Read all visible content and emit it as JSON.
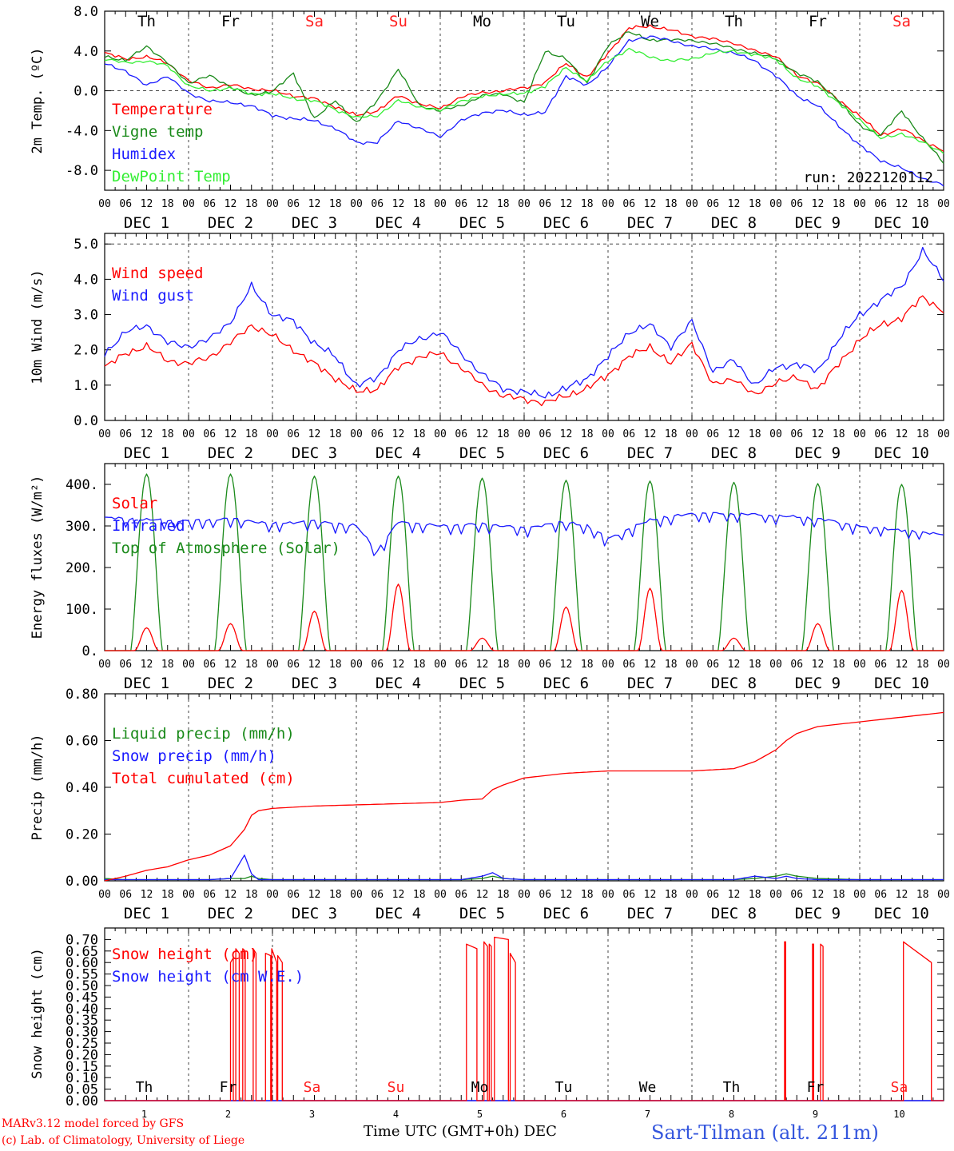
{
  "run_label": "run: 2022120112",
  "colors": {
    "red": "#ff0000",
    "green": "#1a8a1a",
    "blue": "#1a1aff",
    "lightgreen": "#33ee33",
    "weekend": "#ff2020"
  },
  "days": {
    "names": [
      "Th",
      "Fr",
      "Sa",
      "Su",
      "Mo",
      "Tu",
      "We",
      "Th",
      "Fr",
      "Sa"
    ],
    "weekend": [
      false,
      false,
      true,
      true,
      false,
      false,
      false,
      false,
      false,
      true
    ],
    "date_labels": [
      "DEC  1",
      "DEC  2",
      "DEC  3",
      "DEC  4",
      "DEC  5",
      "DEC  6",
      "DEC  7",
      "DEC  8",
      "DEC  9",
      "DEC 10"
    ],
    "numbers": [
      "1",
      "2",
      "3",
      "4",
      "5",
      "6",
      "7",
      "8",
      "9",
      "10"
    ],
    "hour_ticks": [
      "00",
      "06",
      "12",
      "18"
    ],
    "final_tick": "00"
  },
  "footer": {
    "model": "MARv3.12 model forced by GFS",
    "copyright": "(c) Lab. of Climatology, University of Liege",
    "xlabel": "Time UTC (GMT+0h) DEC",
    "station": "Sart-Tilman (alt. 211m)"
  },
  "chart_data": [
    {
      "type": "line",
      "ylabel": "2m Temp. (ºC)",
      "ylim": [
        -10,
        8
      ],
      "yticks": [
        8,
        4,
        0,
        -4,
        -8
      ],
      "ytick_labels": [
        "8.0",
        "4.0",
        "0.0",
        "-4.0",
        "-8.0"
      ],
      "dashed_levels": [
        0
      ],
      "x_unit": "hours since DEC 1 00 UTC",
      "x": [
        0,
        6,
        12,
        18,
        24,
        30,
        36,
        42,
        48,
        54,
        60,
        66,
        72,
        78,
        84,
        90,
        96,
        102,
        108,
        114,
        120,
        126,
        132,
        138,
        144,
        150,
        156,
        162,
        168,
        174,
        180,
        186,
        192,
        198,
        204,
        210,
        216,
        222,
        228,
        234,
        240
      ],
      "series": [
        {
          "name": "Temperature",
          "color": "red",
          "values": [
            3.8,
            3.2,
            3.4,
            2.8,
            1.0,
            0.3,
            0.6,
            0.2,
            0.0,
            -0.5,
            -0.8,
            -1.6,
            -2.5,
            -2.0,
            -0.5,
            -1.3,
            -1.8,
            -0.6,
            -0.2,
            0.0,
            0.3,
            0.8,
            2.8,
            1.3,
            3.8,
            6.3,
            6.5,
            6.1,
            5.5,
            5.2,
            4.8,
            4.0,
            3.5,
            1.5,
            0.8,
            -1.0,
            -2.5,
            -4.5,
            -3.8,
            -5.0,
            -6.0
          ]
        },
        {
          "name": "Vigne temp",
          "color": "green",
          "values": [
            3.5,
            3.0,
            4.5,
            2.8,
            0.8,
            1.5,
            0.4,
            -0.5,
            0.0,
            1.7,
            -2.8,
            -1.0,
            -3.2,
            -1.0,
            2.2,
            -1.5,
            -2.0,
            -1.5,
            -0.5,
            -0.3,
            -1.2,
            4.0,
            3.2,
            0.8,
            4.5,
            6.0,
            5.0,
            5.2,
            5.0,
            4.8,
            4.2,
            3.8,
            3.2,
            1.8,
            0.9,
            -1.0,
            -3.5,
            -4.5,
            -2.0,
            -4.8,
            -7.2
          ]
        },
        {
          "name": "Humidex",
          "color": "blue",
          "values": [
            2.7,
            2.0,
            0.5,
            1.5,
            -0.3,
            -1.0,
            -1.2,
            -1.5,
            -2.5,
            -2.8,
            -3.0,
            -3.8,
            -5.2,
            -5.2,
            -3.0,
            -3.8,
            -4.6,
            -3.0,
            -2.2,
            -2.0,
            -2.4,
            -2.2,
            1.5,
            0.5,
            2.5,
            5.0,
            5.5,
            5.0,
            4.5,
            4.2,
            3.8,
            3.0,
            1.5,
            -0.5,
            -1.5,
            -3.5,
            -5.5,
            -7.0,
            -7.8,
            -8.8,
            -9.5
          ]
        },
        {
          "name": "DewPoint Temp",
          "color": "lightgreen",
          "values": [
            3.2,
            2.8,
            3.0,
            2.5,
            0.5,
            0.0,
            0.3,
            -0.3,
            -0.3,
            -0.8,
            -1.0,
            -1.9,
            -2.7,
            -2.5,
            -1.0,
            -1.6,
            -2.0,
            -1.0,
            -0.6,
            -0.3,
            -0.3,
            0.5,
            2.3,
            1.0,
            3.0,
            4.2,
            3.4,
            3.0,
            3.2,
            3.8,
            4.0,
            3.6,
            3.2,
            1.2,
            0.5,
            -1.3,
            -2.9,
            -4.8,
            -4.3,
            -5.2,
            -6.2
          ]
        }
      ]
    },
    {
      "type": "line",
      "ylabel": "10m Wind (m/s)",
      "ylim": [
        0,
        5.3
      ],
      "yticks": [
        0,
        1,
        2,
        3,
        4,
        5
      ],
      "ytick_labels": [
        "0.0",
        "1.0",
        "2.0",
        "3.0",
        "4.0",
        "5.0"
      ],
      "dashed_levels": [
        5
      ],
      "x_unit": "hours since DEC 1 00 UTC",
      "x": [
        0,
        6,
        12,
        18,
        24,
        30,
        36,
        42,
        48,
        54,
        60,
        66,
        72,
        78,
        84,
        90,
        96,
        102,
        108,
        114,
        120,
        126,
        132,
        138,
        144,
        150,
        156,
        162,
        168,
        174,
        180,
        186,
        192,
        198,
        204,
        210,
        216,
        222,
        228,
        234,
        240
      ],
      "series": [
        {
          "name": "Wind speed",
          "color": "red",
          "values": [
            1.5,
            1.9,
            2.1,
            1.7,
            1.6,
            1.8,
            2.2,
            2.7,
            2.4,
            2.0,
            1.6,
            1.2,
            0.8,
            0.9,
            1.5,
            1.8,
            1.9,
            1.5,
            1.0,
            0.7,
            0.6,
            0.5,
            0.7,
            0.9,
            1.3,
            1.8,
            2.1,
            1.6,
            2.2,
            1.0,
            1.2,
            0.7,
            1.1,
            1.2,
            0.9,
            1.6,
            2.3,
            2.7,
            2.9,
            3.5,
            3.1
          ]
        },
        {
          "name": "Wind gust",
          "color": "blue",
          "values": [
            1.9,
            2.5,
            2.7,
            2.2,
            2.1,
            2.3,
            2.8,
            3.8,
            3.0,
            2.8,
            2.2,
            1.8,
            1.0,
            1.2,
            2.0,
            2.3,
            2.5,
            1.9,
            1.3,
            0.9,
            0.8,
            0.7,
            0.9,
            1.2,
            1.8,
            2.5,
            2.7,
            2.1,
            2.8,
            1.4,
            1.7,
            1.0,
            1.5,
            1.6,
            1.4,
            2.3,
            3.0,
            3.4,
            3.8,
            4.8,
            4.0
          ]
        }
      ]
    },
    {
      "type": "line",
      "ylabel": "Energy fluxes (W/m²)",
      "ylim": [
        0,
        450
      ],
      "yticks": [
        0,
        100,
        200,
        300,
        400
      ],
      "ytick_labels": [
        "0.",
        "100.",
        "200.",
        "300.",
        "400."
      ],
      "x_unit": "hours since DEC 1 00 UTC",
      "series": [
        {
          "name": "Solar",
          "color": "red",
          "daily_peaks": [
            55,
            65,
            95,
            160,
            30,
            105,
            150,
            30,
            65,
            145
          ]
        },
        {
          "name": "Infrared",
          "color": "blue",
          "x": [
            0,
            12,
            24,
            36,
            48,
            60,
            72,
            78,
            84,
            96,
            108,
            120,
            132,
            138,
            144,
            156,
            168,
            180,
            192,
            204,
            216,
            228,
            240
          ],
          "values": [
            320,
            315,
            312,
            318,
            305,
            312,
            300,
            240,
            310,
            300,
            305,
            295,
            310,
            300,
            270,
            315,
            330,
            330,
            325,
            318,
            300,
            290,
            280
          ]
        },
        {
          "name": "Top of Atmosphere (Solar)",
          "color": "green",
          "daily_peaks": [
            425,
            425,
            420,
            420,
            415,
            410,
            408,
            405,
            402,
            400
          ]
        }
      ]
    },
    {
      "type": "line",
      "ylabel": "Precip (mm/h)",
      "ylim": [
        0,
        0.8
      ],
      "yticks": [
        0,
        0.2,
        0.4,
        0.6,
        0.8
      ],
      "ytick_labels": [
        "0.00",
        "0.20",
        "0.40",
        "0.60",
        "0.80"
      ],
      "x_unit": "hours since DEC 1 00 UTC",
      "x": [
        0,
        6,
        12,
        18,
        24,
        30,
        36,
        40,
        42,
        44,
        48,
        60,
        72,
        84,
        96,
        102,
        108,
        111,
        114,
        120,
        132,
        144,
        156,
        168,
        180,
        186,
        192,
        195,
        198,
        204,
        216,
        228,
        240
      ],
      "series": [
        {
          "name": "Liquid precip (mm/h)",
          "color": "green",
          "values": [
            0.01,
            0.005,
            0.005,
            0.005,
            0.005,
            0.005,
            0.01,
            0.01,
            0.02,
            0.01,
            0.005,
            0.005,
            0.005,
            0.005,
            0.005,
            0.005,
            0.01,
            0.02,
            0.01,
            0.005,
            0.005,
            0.005,
            0.005,
            0.005,
            0.005,
            0.01,
            0.02,
            0.03,
            0.02,
            0.01,
            0.005,
            0.005,
            0.005
          ]
        },
        {
          "name": "Snow precip (mm/h)",
          "color": "blue",
          "values": [
            0.005,
            0.005,
            0.005,
            0.005,
            0.005,
            0.005,
            0.01,
            0.11,
            0.03,
            0.005,
            0.005,
            0.005,
            0.005,
            0.005,
            0.005,
            0.005,
            0.02,
            0.035,
            0.01,
            0.005,
            0.005,
            0.005,
            0.005,
            0.005,
            0.005,
            0.02,
            0.01,
            0.02,
            0.01,
            0.005,
            0.005,
            0.005,
            0.005
          ]
        },
        {
          "name": "Total cumulated (cm)",
          "color": "red",
          "values": [
            0.0,
            0.02,
            0.045,
            0.06,
            0.09,
            0.11,
            0.15,
            0.22,
            0.28,
            0.3,
            0.31,
            0.32,
            0.325,
            0.33,
            0.335,
            0.345,
            0.35,
            0.39,
            0.41,
            0.44,
            0.46,
            0.47,
            0.47,
            0.47,
            0.48,
            0.51,
            0.56,
            0.6,
            0.63,
            0.66,
            0.68,
            0.7,
            0.72
          ]
        }
      ]
    },
    {
      "type": "line",
      "ylabel": "Snow height (cm)",
      "ylim": [
        0,
        0.75
      ],
      "yticks": [
        0,
        0.05,
        0.1,
        0.15,
        0.2,
        0.25,
        0.3,
        0.35,
        0.4,
        0.45,
        0.5,
        0.55,
        0.6,
        0.65,
        0.7
      ],
      "ytick_labels": [
        "0.00",
        "0.05",
        "0.10",
        "0.15",
        "0.20",
        "0.25",
        "0.30",
        "0.35",
        "0.40",
        "0.45",
        "0.50",
        "0.55",
        "0.60",
        "0.65",
        "0.70"
      ],
      "x_unit": "hours since DEC 1 00 UTC",
      "series": [
        {
          "name": "Snow height (cm)",
          "color": "red",
          "spikes": [
            {
              "x0": 36,
              "x1": 36.8,
              "v0": 0.6,
              "v1": 0.62
            },
            {
              "x0": 37.5,
              "x1": 38.5,
              "v0": 0.66,
              "v1": 0.64
            },
            {
              "x0": 39.5,
              "x1": 40.2,
              "v0": 0.66,
              "v1": 0.65
            },
            {
              "x0": 42.5,
              "x1": 43.3,
              "v0": 0.66,
              "v1": 0.64
            },
            {
              "x0": 46,
              "x1": 47.5,
              "v0": 0.64,
              "v1": 0.63
            },
            {
              "x0": 47.8,
              "x1": 49.2,
              "v0": 0.66,
              "v1": 0.6
            },
            {
              "x0": 49.5,
              "x1": 50.8,
              "v0": 0.63,
              "v1": 0.6
            },
            {
              "x0": 103.5,
              "x1": 106.5,
              "v0": 0.68,
              "v1": 0.66
            },
            {
              "x0": 108.5,
              "x1": 109.5,
              "v0": 0.69,
              "v1": 0.67
            },
            {
              "x0": 110,
              "x1": 110.6,
              "v0": 0.68,
              "v1": 0.67
            },
            {
              "x0": 111.5,
              "x1": 115.5,
              "v0": 0.71,
              "v1": 0.7
            },
            {
              "x0": 116,
              "x1": 117.5,
              "v0": 0.64,
              "v1": 0.6
            },
            {
              "x0": 194.5,
              "x1": 194.8,
              "v0": 0.69,
              "v1": 0.69
            },
            {
              "x0": 202.5,
              "x1": 202.8,
              "v0": 0.68,
              "v1": 0.68
            },
            {
              "x0": 204.8,
              "x1": 205.5,
              "v0": 0.68,
              "v1": 0.67
            },
            {
              "x0": 228.5,
              "x1": 236.5,
              "v0": 0.69,
              "v1": 0.6
            }
          ]
        },
        {
          "name": "Snow height (cm W.E.)",
          "color": "blue",
          "values": [
            0
          ]
        }
      ]
    }
  ]
}
